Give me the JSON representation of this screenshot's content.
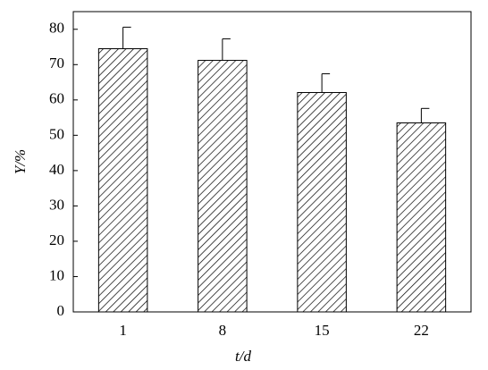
{
  "chart_data": {
    "type": "bar",
    "x_label": "t/d",
    "y_label": "Y/%",
    "categories": [
      "1",
      "8",
      "15",
      "22"
    ],
    "values": [
      74.5,
      71.2,
      62.1,
      53.5
    ],
    "errors": [
      6.1,
      6.1,
      5.3,
      4.1
    ],
    "color": "#000000",
    "ylim": [
      0,
      85
    ],
    "yticks": [
      0,
      10,
      20,
      30,
      40,
      50,
      60,
      70,
      80
    ],
    "grid": false
  }
}
